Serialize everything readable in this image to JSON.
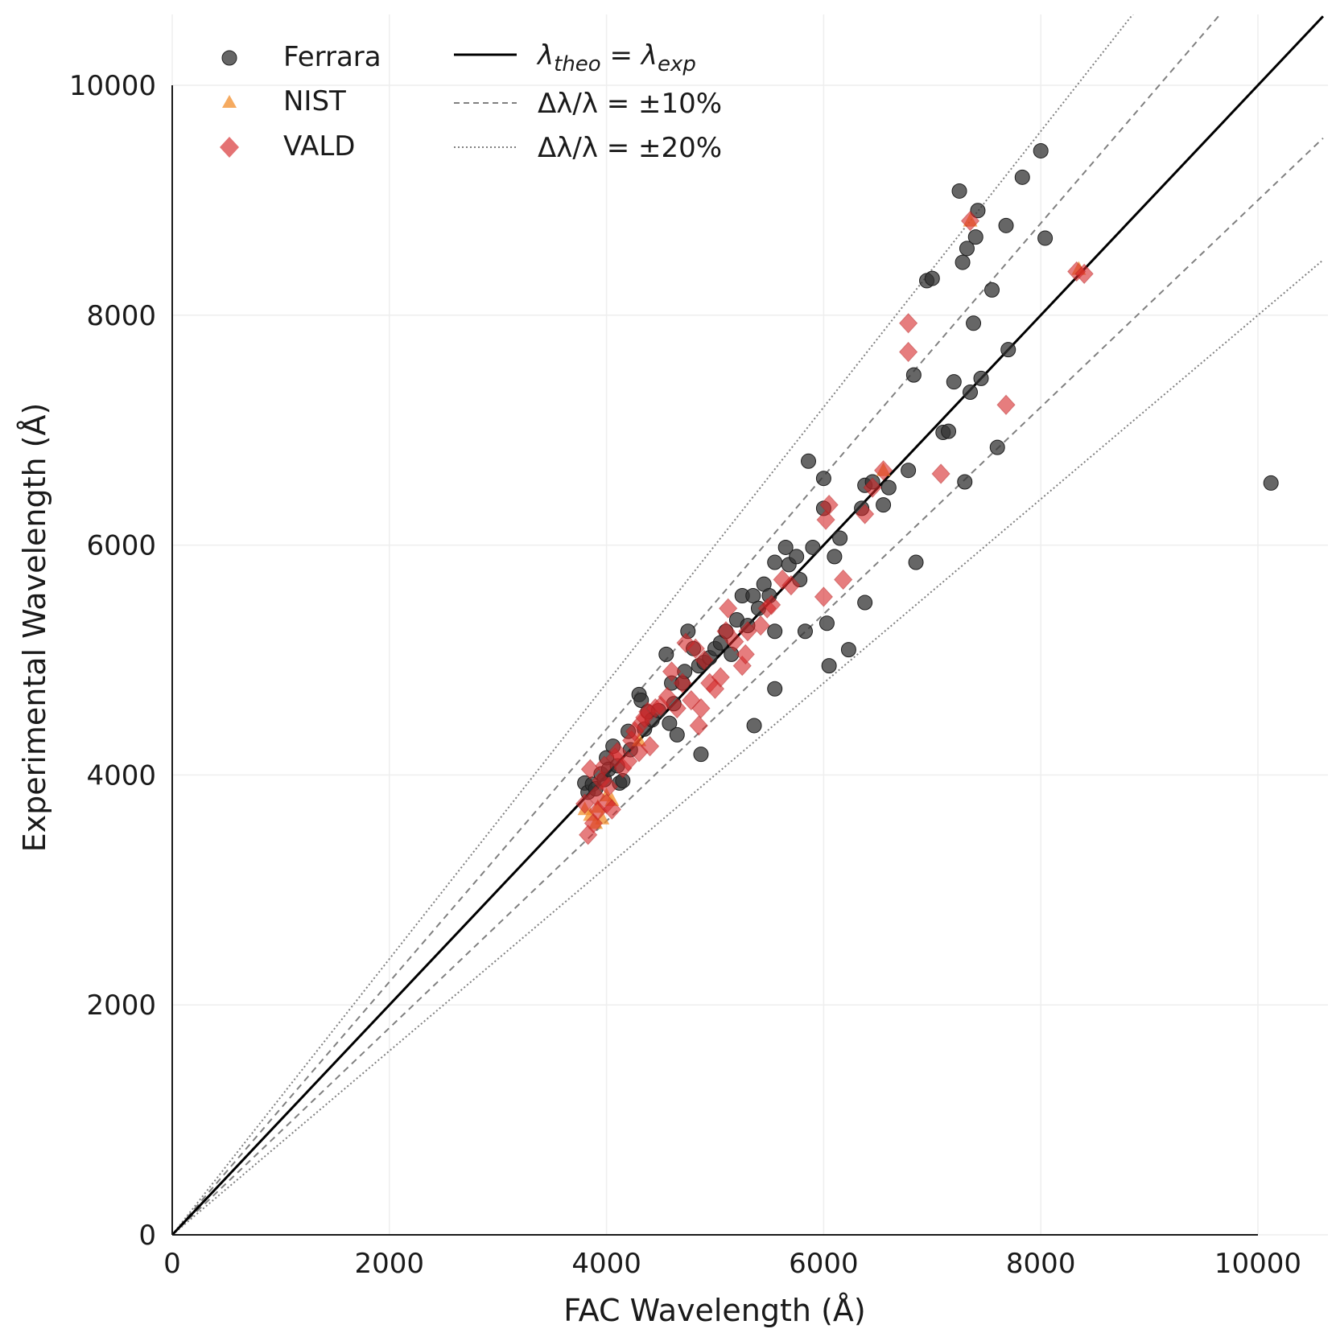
{
  "chart_data": {
    "type": "scatter",
    "xlabel": "FAC Wavelength (Å)",
    "ylabel": "Experimental Wavelength (Å)",
    "xlim": [
      0,
      10600
    ],
    "ylim": [
      0,
      10600
    ],
    "xticks": [
      0,
      2000,
      4000,
      6000,
      8000,
      10000
    ],
    "yticks": [
      0,
      2000,
      4000,
      6000,
      8000,
      10000
    ],
    "xtick_labels": [
      "0",
      "2000",
      "4000",
      "6000",
      "8000",
      "10000"
    ],
    "ytick_labels": [
      "0",
      "2000",
      "4000",
      "6000",
      "8000",
      "10000"
    ],
    "grid": true,
    "legend_position": "top-left",
    "colors": {
      "ferrara": "#333333",
      "nist": "#f28e2b",
      "vald": "#d62728",
      "line": "#000000",
      "band": "#808080"
    },
    "series": [
      {
        "name": "Ferrara",
        "marker": "circle",
        "points": [
          [
            3800,
            3930
          ],
          [
            3830,
            3850
          ],
          [
            3870,
            3920
          ],
          [
            3900,
            3880
          ],
          [
            3950,
            4010
          ],
          [
            3980,
            3960
          ],
          [
            4000,
            4150
          ],
          [
            4020,
            4050
          ],
          [
            4060,
            4250
          ],
          [
            4100,
            4080
          ],
          [
            4120,
            3930
          ],
          [
            4150,
            3950
          ],
          [
            4200,
            4380
          ],
          [
            4220,
            4220
          ],
          [
            4300,
            4700
          ],
          [
            4320,
            4650
          ],
          [
            4350,
            4400
          ],
          [
            4380,
            4550
          ],
          [
            4420,
            4480
          ],
          [
            4480,
            4560
          ],
          [
            4550,
            5050
          ],
          [
            4580,
            4450
          ],
          [
            4600,
            4800
          ],
          [
            4620,
            4620
          ],
          [
            4650,
            4350
          ],
          [
            4700,
            4800
          ],
          [
            4720,
            4900
          ],
          [
            4750,
            5250
          ],
          [
            4800,
            5100
          ],
          [
            4850,
            4950
          ],
          [
            4870,
            4180
          ],
          [
            4900,
            4980
          ],
          [
            4950,
            5020
          ],
          [
            5000,
            5100
          ],
          [
            5050,
            5150
          ],
          [
            5100,
            5250
          ],
          [
            5150,
            5050
          ],
          [
            5200,
            5350
          ],
          [
            5250,
            5560
          ],
          [
            5300,
            5300
          ],
          [
            5350,
            5560
          ],
          [
            5400,
            5450
          ],
          [
            5450,
            5660
          ],
          [
            5500,
            5560
          ],
          [
            5550,
            5850
          ],
          [
            5550,
            5250
          ],
          [
            5550,
            4750
          ],
          [
            5360,
            4430
          ],
          [
            5650,
            5980
          ],
          [
            5680,
            5830
          ],
          [
            5750,
            5900
          ],
          [
            5780,
            5700
          ],
          [
            5830,
            5250
          ],
          [
            5860,
            6730
          ],
          [
            5900,
            5980
          ],
          [
            6000,
            6580
          ],
          [
            6000,
            6320
          ],
          [
            6030,
            5320
          ],
          [
            6050,
            4950
          ],
          [
            6100,
            5900
          ],
          [
            6150,
            6060
          ],
          [
            6230,
            5090
          ],
          [
            6350,
            6320
          ],
          [
            6380,
            6520
          ],
          [
            6380,
            5500
          ],
          [
            6450,
            6550
          ],
          [
            6550,
            6350
          ],
          [
            6600,
            6500
          ],
          [
            6780,
            6650
          ],
          [
            6830,
            7480
          ],
          [
            6850,
            5850
          ],
          [
            6950,
            8300
          ],
          [
            7000,
            8320
          ],
          [
            7100,
            6980
          ],
          [
            7150,
            6990
          ],
          [
            7200,
            7420
          ],
          [
            7250,
            9080
          ],
          [
            7280,
            8460
          ],
          [
            7300,
            6550
          ],
          [
            7320,
            8580
          ],
          [
            7350,
            7330
          ],
          [
            7380,
            7930
          ],
          [
            7400,
            8680
          ],
          [
            7420,
            8910
          ],
          [
            7450,
            7450
          ],
          [
            7550,
            8220
          ],
          [
            7600,
            6850
          ],
          [
            7680,
            8780
          ],
          [
            7700,
            7700
          ],
          [
            7830,
            9200
          ],
          [
            8000,
            9430
          ],
          [
            8040,
            8670
          ],
          [
            10120,
            6540
          ]
        ]
      },
      {
        "name": "NIST",
        "marker": "triangle",
        "points": [
          [
            3800,
            3700
          ],
          [
            3850,
            3650
          ],
          [
            3900,
            3580
          ],
          [
            3920,
            3720
          ],
          [
            3960,
            3620
          ],
          [
            4000,
            3820
          ],
          [
            4050,
            3780
          ],
          [
            4300,
            4300
          ],
          [
            6550,
            6650
          ],
          [
            7350,
            8820
          ],
          [
            8350,
            8400
          ]
        ]
      },
      {
        "name": "VALD",
        "marker": "diamond",
        "points": [
          [
            3800,
            3750
          ],
          [
            3830,
            3480
          ],
          [
            3850,
            4050
          ],
          [
            3880,
            3580
          ],
          [
            3900,
            3820
          ],
          [
            3920,
            3690
          ],
          [
            3950,
            3950
          ],
          [
            3980,
            4080
          ],
          [
            4000,
            3750
          ],
          [
            4020,
            3900
          ],
          [
            4050,
            3700
          ],
          [
            4080,
            4150
          ],
          [
            4100,
            4200
          ],
          [
            4150,
            4060
          ],
          [
            4200,
            4120
          ],
          [
            4230,
            4300
          ],
          [
            4260,
            4380
          ],
          [
            4300,
            4200
          ],
          [
            4320,
            4450
          ],
          [
            4350,
            4500
          ],
          [
            4380,
            4550
          ],
          [
            4400,
            4250
          ],
          [
            4450,
            4580
          ],
          [
            4500,
            4600
          ],
          [
            4560,
            4680
          ],
          [
            4600,
            4900
          ],
          [
            4650,
            4580
          ],
          [
            4700,
            4800
          ],
          [
            4730,
            5150
          ],
          [
            4780,
            4650
          ],
          [
            4820,
            5100
          ],
          [
            4850,
            4430
          ],
          [
            4870,
            4580
          ],
          [
            4900,
            5000
          ],
          [
            4950,
            4800
          ],
          [
            5000,
            4750
          ],
          [
            5050,
            4850
          ],
          [
            5100,
            5250
          ],
          [
            5120,
            5450
          ],
          [
            5180,
            5160
          ],
          [
            5250,
            4950
          ],
          [
            5280,
            5050
          ],
          [
            5300,
            5250
          ],
          [
            5420,
            5300
          ],
          [
            5480,
            5450
          ],
          [
            5520,
            5480
          ],
          [
            5620,
            5700
          ],
          [
            5700,
            5650
          ],
          [
            6000,
            5550
          ],
          [
            6020,
            6220
          ],
          [
            6050,
            6350
          ],
          [
            6180,
            5700
          ],
          [
            6380,
            6270
          ],
          [
            6450,
            6500
          ],
          [
            6550,
            6650
          ],
          [
            6780,
            7930
          ],
          [
            6780,
            7680
          ],
          [
            7080,
            6620
          ],
          [
            7350,
            8820
          ],
          [
            7680,
            7220
          ],
          [
            8330,
            8380
          ],
          [
            8400,
            8360
          ]
        ]
      }
    ],
    "reference_lines": [
      {
        "label_main": "λ",
        "label_sub_theo": "theo",
        "label_eq": " = ",
        "label_sub_exp": "exp",
        "slope": 1.0,
        "style": "solid"
      },
      {
        "label": "Δλ/λ = ±10%",
        "slopes": [
          1.1,
          0.9
        ],
        "style": "dashed"
      },
      {
        "label": "Δλ/λ = ±20%",
        "slopes": [
          1.2,
          0.8
        ],
        "style": "dotted"
      }
    ]
  }
}
